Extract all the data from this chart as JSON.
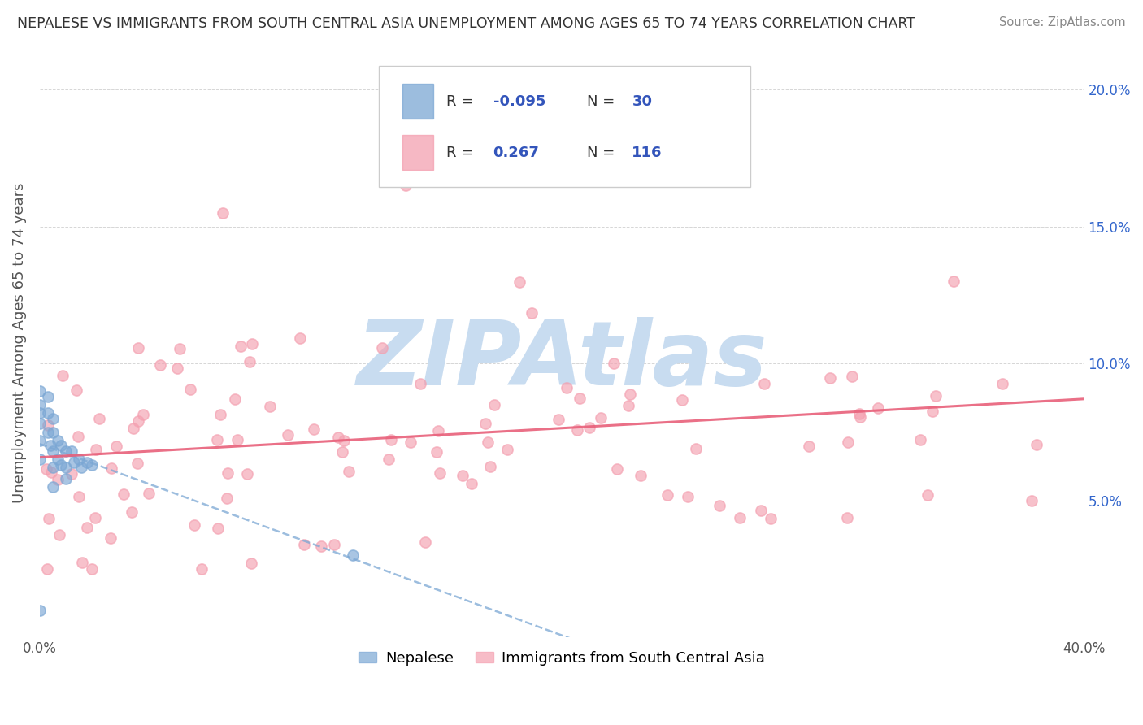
{
  "title": "NEPALESE VS IMMIGRANTS FROM SOUTH CENTRAL ASIA UNEMPLOYMENT AMONG AGES 65 TO 74 YEARS CORRELATION CHART",
  "source": "Source: ZipAtlas.com",
  "ylabel": "Unemployment Among Ages 65 to 74 years",
  "xlim": [
    0.0,
    0.4
  ],
  "ylim": [
    0.0,
    0.215
  ],
  "xtick_vals": [
    0.0,
    0.05,
    0.1,
    0.15,
    0.2,
    0.25,
    0.3,
    0.35,
    0.4
  ],
  "xtick_labels": [
    "0.0%",
    "",
    "",
    "",
    "",
    "",
    "",
    "",
    "40.0%"
  ],
  "ytick_vals": [
    0.0,
    0.05,
    0.1,
    0.15,
    0.2
  ],
  "ytick_labels_right": [
    "",
    "5.0%",
    "10.0%",
    "15.0%",
    "20.0%"
  ],
  "color_nepalese": "#7BA7D4",
  "color_immigrants": "#F4A0B0",
  "line_color_nepalese": "#7BA7D4",
  "line_color_immigrants": "#E8607A",
  "watermark": "ZIPAtlas",
  "watermark_color": "#C8DCF0",
  "legend_r1_label": "R = ",
  "legend_r1_val": "-0.095",
  "legend_n1_label": "N = ",
  "legend_n1_val": "30",
  "legend_r2_label": "R =  ",
  "legend_r2_val": "0.267",
  "legend_n2_label": "N = ",
  "legend_n2_val": "116",
  "text_color_val": "#3355BB",
  "text_color_label": "#333333",
  "nepal_seed": 42,
  "imm_seed": 77,
  "bottom_legend_label1": "Nepalese",
  "bottom_legend_label2": "Immigrants from South Central Asia"
}
